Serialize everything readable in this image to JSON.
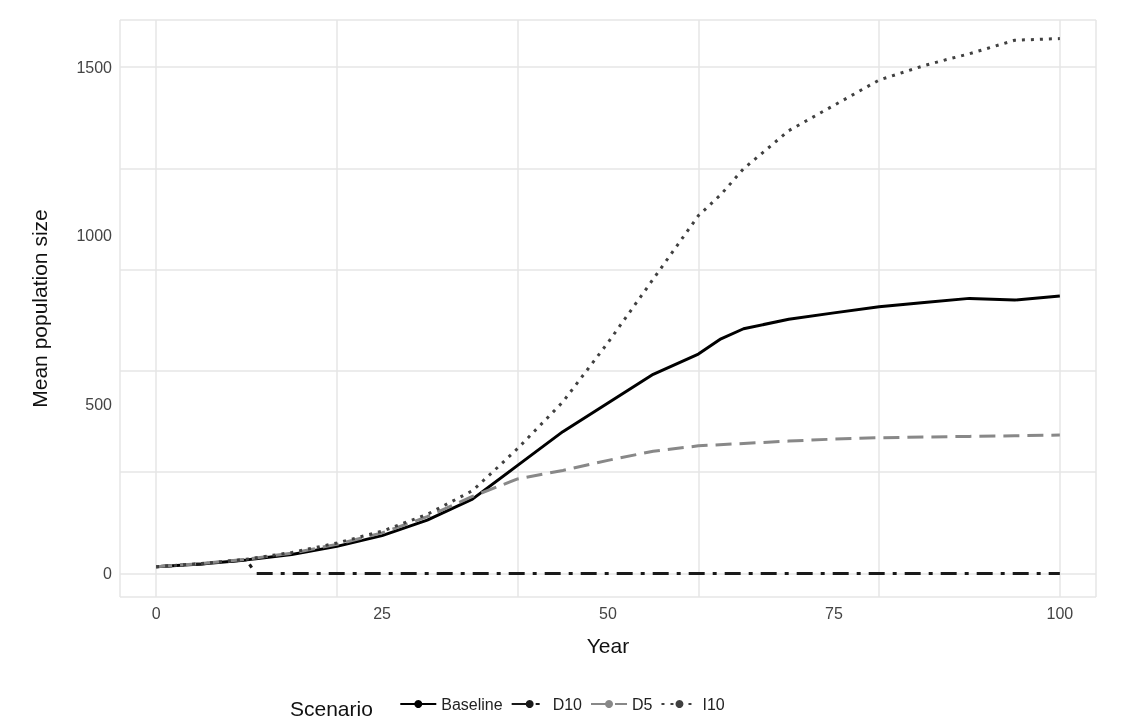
{
  "chart_data": {
    "type": "line",
    "xlabel": "Year",
    "ylabel": "Mean population size",
    "legend_title": "Scenario",
    "xlim": [
      -4,
      104
    ],
    "xticks": [
      0,
      25,
      50,
      75,
      100
    ],
    "ylim": [
      -70,
      1640
    ],
    "yticks": [
      0,
      500,
      1000,
      1500
    ],
    "grid": true,
    "legend": "bottom",
    "marker": "none",
    "series": [
      {
        "name": "Baseline",
        "color": "#000000",
        "line_style": "solid",
        "x": [
          0,
          5,
          10,
          15,
          20,
          25,
          30,
          35,
          40,
          45,
          50,
          55,
          60,
          62.5,
          65,
          70,
          75,
          80,
          85,
          90,
          95,
          100
        ],
        "values": [
          20,
          28,
          40,
          56,
          80,
          112,
          158,
          220,
          320,
          420,
          505,
          590,
          650,
          695,
          725,
          753,
          772,
          790,
          803,
          815,
          810,
          822
        ]
      },
      {
        "name": "D10",
        "color": "#1a1a1a",
        "line_style": "dashdot",
        "x": [
          0,
          5,
          10,
          11,
          100
        ],
        "values": [
          20,
          28,
          40,
          0,
          0
        ]
      },
      {
        "name": "D5",
        "color": "#888888",
        "line_style": "dashed",
        "x": [
          0,
          5,
          10,
          15,
          20,
          25,
          30,
          35,
          40,
          45,
          50,
          55,
          60,
          65,
          70,
          75,
          80,
          85,
          90,
          95,
          100
        ],
        "values": [
          20,
          29,
          42,
          60,
          86,
          120,
          168,
          228,
          280,
          305,
          335,
          362,
          378,
          385,
          392,
          398,
          402,
          404,
          406,
          408,
          410
        ]
      },
      {
        "name": "I10",
        "color": "#404040",
        "line_style": "dotted",
        "x": [
          0,
          5,
          10,
          15,
          20,
          25,
          30,
          35,
          37.5,
          40,
          45,
          50,
          55,
          60,
          62.5,
          65,
          70,
          75,
          80,
          85,
          87.5,
          90,
          95,
          100
        ],
        "values": [
          20,
          29,
          42,
          62,
          90,
          125,
          175,
          245,
          307,
          370,
          508,
          684,
          872,
          1060,
          1123,
          1199,
          1312,
          1387,
          1462,
          1505,
          1523,
          1540,
          1580,
          1585
        ]
      }
    ]
  }
}
